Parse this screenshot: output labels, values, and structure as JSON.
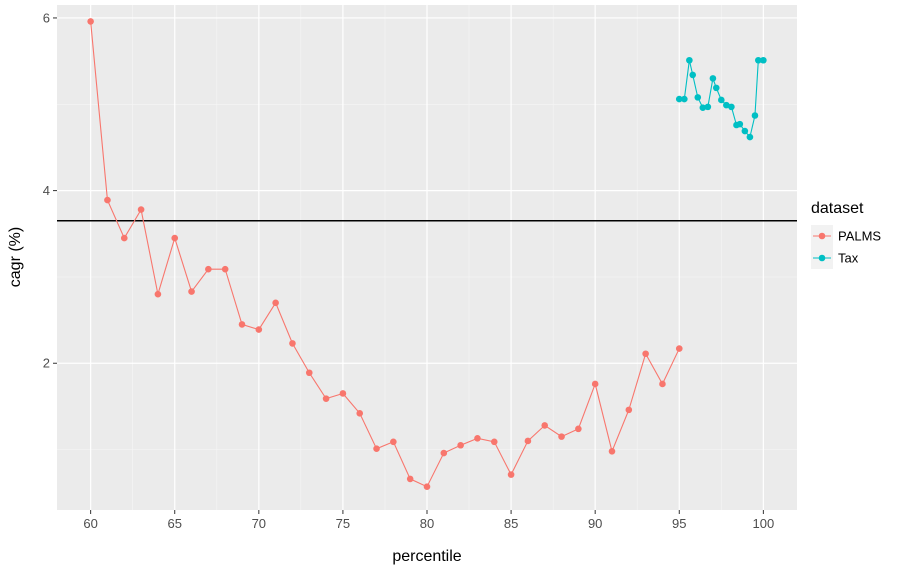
{
  "chart_data": {
    "type": "line",
    "xlabel": "percentile",
    "ylabel": "cagr (%)",
    "xlim": [
      58,
      102
    ],
    "ylim": [
      0.3,
      6.15
    ],
    "x_ticks": [
      60,
      65,
      70,
      75,
      80,
      85,
      90,
      95,
      100
    ],
    "x_tick_labels": [
      "60",
      "65",
      "70",
      "75",
      "80",
      "85",
      "90",
      "95",
      "100"
    ],
    "y_ticks": [
      2,
      4,
      6
    ],
    "y_tick_labels": [
      "2",
      "4",
      "6"
    ],
    "grid": true,
    "legend": {
      "title": "dataset",
      "position": "right"
    },
    "reference_line": {
      "y": 3.65,
      "color": "#000000"
    },
    "series": [
      {
        "name": "PALMS",
        "color": "#F8766D",
        "x": [
          60,
          61,
          62,
          63,
          64,
          65,
          66,
          67,
          68,
          69,
          70,
          71,
          72,
          73,
          74,
          75,
          76,
          77,
          78,
          79,
          80,
          81,
          82,
          83,
          84,
          85,
          86,
          87,
          88,
          89,
          90,
          91,
          92,
          93,
          94,
          95
        ],
        "y": [
          5.96,
          3.89,
          3.45,
          3.78,
          2.8,
          3.45,
          2.83,
          3.09,
          3.09,
          2.45,
          2.39,
          2.7,
          2.23,
          1.89,
          1.59,
          1.65,
          1.42,
          1.01,
          1.09,
          0.66,
          0.57,
          0.96,
          1.05,
          1.13,
          1.09,
          0.71,
          1.1,
          1.28,
          1.15,
          1.24,
          1.76,
          0.98,
          1.46,
          2.11,
          1.76,
          2.17
        ]
      },
      {
        "name": "Tax",
        "color": "#00BFC4",
        "x": [
          95.0,
          95.3,
          95.6,
          95.8,
          96.1,
          96.4,
          96.7,
          97.0,
          97.2,
          97.5,
          97.8,
          98.1,
          98.4,
          98.6,
          98.9,
          99.2,
          99.5,
          99.7,
          100.0
        ],
        "y": [
          5.06,
          5.06,
          5.51,
          5.34,
          5.08,
          4.96,
          4.97,
          5.3,
          5.19,
          5.05,
          4.99,
          4.97,
          4.76,
          4.77,
          4.69,
          4.62,
          4.87,
          5.51,
          5.51
        ]
      }
    ]
  }
}
